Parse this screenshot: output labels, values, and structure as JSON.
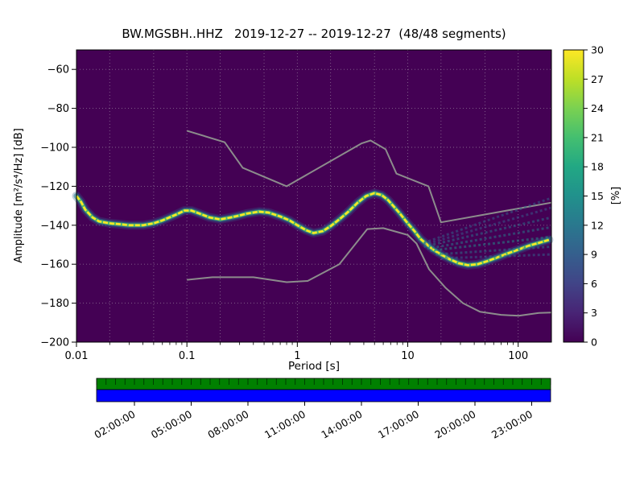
{
  "chart_data": {
    "type": "heatmap",
    "title": "BW.MGSBH..HHZ   2019-12-27 -- 2019-12-27  (48/48 segments)",
    "xlabel": "Period [s]",
    "ylabel": "Amplitude [m²/s⁴/Hz] [dB]",
    "x_scale": "log",
    "xlim": [
      0.01,
      200
    ],
    "ylim": [
      -200,
      -50
    ],
    "x_ticks": [
      0.01,
      0.1,
      1,
      10,
      100
    ],
    "x_tick_labels": [
      "0.01",
      "0.1",
      "1",
      "10",
      "100"
    ],
    "y_ticks": [
      -60,
      -80,
      -100,
      -120,
      -140,
      -160,
      -180,
      -200
    ],
    "y_tick_labels": [
      "−60",
      "−80",
      "−100",
      "−120",
      "−140",
      "−160",
      "−180",
      "−200"
    ],
    "grid": true,
    "background": "#440154",
    "colorbar": {
      "label": "[%]",
      "min": 0,
      "max": 30,
      "ticks": [
        0,
        3,
        6,
        9,
        12,
        15,
        18,
        21,
        24,
        27,
        30
      ],
      "tick_labels": [
        "0",
        "3",
        "6",
        "9",
        "12",
        "15",
        "18",
        "21",
        "24",
        "27",
        "30"
      ],
      "colormap": "viridis",
      "gradient_stops": [
        {
          "offset": 0.0,
          "color": "#440154"
        },
        {
          "offset": 0.1,
          "color": "#482475"
        },
        {
          "offset": 0.2,
          "color": "#414487"
        },
        {
          "offset": 0.3,
          "color": "#355f8d"
        },
        {
          "offset": 0.4,
          "color": "#2a788e"
        },
        {
          "offset": 0.5,
          "color": "#21918c"
        },
        {
          "offset": 0.6,
          "color": "#22a884"
        },
        {
          "offset": 0.7,
          "color": "#44bf70"
        },
        {
          "offset": 0.8,
          "color": "#7ad151"
        },
        {
          "offset": 0.9,
          "color": "#bddf26"
        },
        {
          "offset": 1.0,
          "color": "#fde725"
        }
      ]
    },
    "mode_curve": {
      "name": "psd-highest-probability-ridge",
      "band_colors": {
        "halo": "#33628f",
        "outer": "#26828e",
        "mid": "#50c46a",
        "core": "#fde725"
      },
      "points": [
        [
          0.01,
          -125
        ],
        [
          0.011,
          -128
        ],
        [
          0.012,
          -132
        ],
        [
          0.014,
          -136
        ],
        [
          0.016,
          -138
        ],
        [
          0.02,
          -139
        ],
        [
          0.025,
          -139.5
        ],
        [
          0.03,
          -140
        ],
        [
          0.04,
          -140
        ],
        [
          0.05,
          -139
        ],
        [
          0.06,
          -137.5
        ],
        [
          0.08,
          -134.5
        ],
        [
          0.095,
          -132.5
        ],
        [
          0.11,
          -132.5
        ],
        [
          0.13,
          -134
        ],
        [
          0.16,
          -136
        ],
        [
          0.2,
          -137
        ],
        [
          0.25,
          -136
        ],
        [
          0.3,
          -135
        ],
        [
          0.35,
          -134
        ],
        [
          0.45,
          -133
        ],
        [
          0.55,
          -133.5
        ],
        [
          0.7,
          -135.5
        ],
        [
          0.85,
          -137.5
        ],
        [
          1.0,
          -140
        ],
        [
          1.2,
          -142.5
        ],
        [
          1.4,
          -144
        ],
        [
          1.7,
          -143
        ],
        [
          2.0,
          -140.5
        ],
        [
          2.4,
          -137
        ],
        [
          2.9,
          -133
        ],
        [
          3.5,
          -128.5
        ],
        [
          4.2,
          -125
        ],
        [
          5.0,
          -123.5
        ],
        [
          5.8,
          -124.5
        ],
        [
          6.6,
          -127
        ],
        [
          7.5,
          -130.5
        ],
        [
          8.5,
          -134
        ],
        [
          10,
          -139
        ],
        [
          11.5,
          -143
        ],
        [
          13,
          -147
        ],
        [
          15,
          -150
        ],
        [
          17,
          -152.5
        ],
        [
          20,
          -155
        ],
        [
          24,
          -157.5
        ],
        [
          29,
          -159.5
        ],
        [
          35,
          -160.5
        ],
        [
          43,
          -160
        ],
        [
          52,
          -158.5
        ],
        [
          65,
          -156.5
        ],
        [
          80,
          -154.5
        ],
        [
          100,
          -152.5
        ],
        [
          125,
          -150.5
        ],
        [
          155,
          -149
        ],
        [
          190,
          -147.5
        ]
      ]
    },
    "spread_lines": [
      {
        "color": "#31688e",
        "points": [
          [
            14,
            -149
          ],
          [
            200,
            -126
          ]
        ]
      },
      {
        "color": "#355f8d",
        "points": [
          [
            14,
            -150
          ],
          [
            200,
            -131
          ]
        ]
      },
      {
        "color": "#2a788e",
        "points": [
          [
            14,
            -151
          ],
          [
            200,
            -136
          ]
        ]
      },
      {
        "color": "#26828e",
        "points": [
          [
            15,
            -152
          ],
          [
            200,
            -141
          ]
        ]
      },
      {
        "color": "#21918c",
        "points": [
          [
            16,
            -153
          ],
          [
            200,
            -146
          ]
        ]
      },
      {
        "color": "#2a788e",
        "points": [
          [
            18,
            -155
          ],
          [
            200,
            -151
          ]
        ]
      },
      {
        "color": "#31688e",
        "points": [
          [
            20,
            -157
          ],
          [
            200,
            -155
          ]
        ]
      }
    ],
    "noise_models": [
      {
        "name": "NHNM",
        "color": "#8c8c8c",
        "points": [
          [
            0.1,
            -91.5
          ],
          [
            0.22,
            -97.4
          ],
          [
            0.32,
            -110.5
          ],
          [
            0.8,
            -120.0
          ],
          [
            3.8,
            -98.0
          ],
          [
            4.6,
            -96.5
          ],
          [
            6.3,
            -101.0
          ],
          [
            7.9,
            -113.5
          ],
          [
            15.4,
            -120.0
          ],
          [
            20.0,
            -138.5
          ],
          [
            200,
            -128.4
          ]
        ]
      },
      {
        "name": "NLNM",
        "color": "#8c8c8c",
        "points": [
          [
            0.1,
            -168.0
          ],
          [
            0.17,
            -166.7
          ],
          [
            0.4,
            -166.7
          ],
          [
            0.8,
            -169.2
          ],
          [
            1.24,
            -168.6
          ],
          [
            2.4,
            -160.0
          ],
          [
            4.3,
            -142.0
          ],
          [
            6.0,
            -141.5
          ],
          [
            10.0,
            -145.0
          ],
          [
            12.0,
            -149.4
          ],
          [
            15.6,
            -162.6
          ],
          [
            21.9,
            -172.0
          ],
          [
            31.6,
            -180.0
          ],
          [
            45.0,
            -184.4
          ],
          [
            70.0,
            -186.0
          ],
          [
            101.0,
            -186.5
          ],
          [
            154.0,
            -185.0
          ],
          [
            200,
            -184.8
          ]
        ]
      }
    ],
    "coverage": {
      "segments": 48,
      "axis_range_hours": [
        0,
        24
      ],
      "tick_hours": [
        2,
        5,
        8,
        11,
        14,
        17,
        20,
        23
      ],
      "tick_labels": [
        "02:00:00",
        "05:00:00",
        "08:00:00",
        "11:00:00",
        "14:00:00",
        "17:00:00",
        "20:00:00",
        "23:00:00"
      ],
      "colors": {
        "segments_bar": "#008000",
        "extent_bar": "#0000ff"
      }
    }
  }
}
